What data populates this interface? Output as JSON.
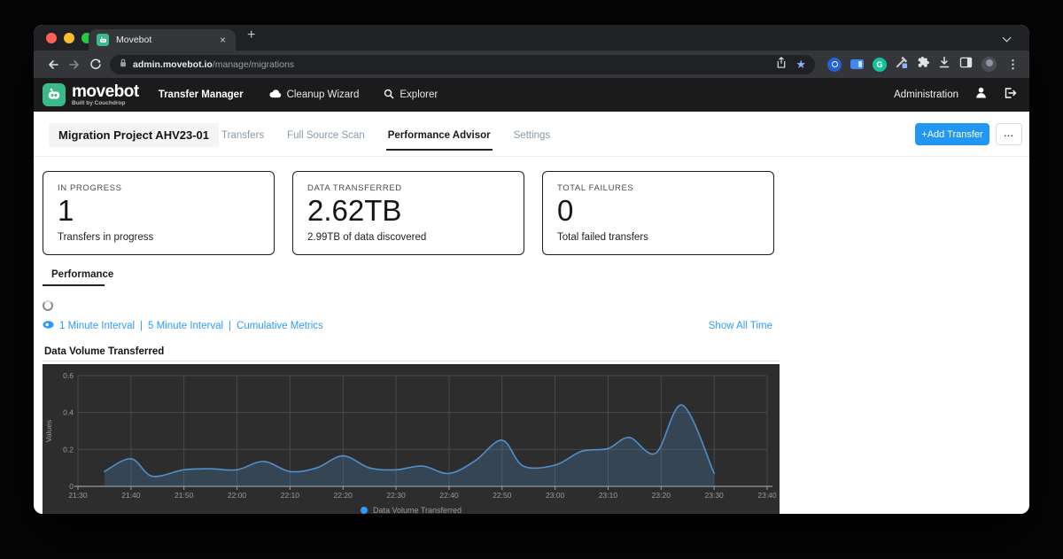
{
  "browser": {
    "tab_title": "Movebot",
    "url_domain": "admin.movebot.io",
    "url_path": "/manage/migrations",
    "glyphs": {
      "close_tab": "×",
      "new_tab": "+",
      "bookmark_star": "★",
      "menu_dots": "⋮",
      "grammarly_g": "G"
    },
    "toolbar_icons": [
      "back-arrow",
      "forward-arrow",
      "reload",
      "lock",
      "share",
      "bookmark-star",
      "onepassword",
      "card-extension",
      "grammarly",
      "color-picker",
      "extensions-puzzle",
      "downloads",
      "sidebar-panel",
      "profile-avatar",
      "menu-dots",
      "tab-search-chevron"
    ]
  },
  "navbar": {
    "brand": "movebot",
    "brand_tagline": "Built by Couchdrop",
    "items": [
      {
        "label": "Transfer Manager",
        "active": true
      },
      {
        "label": "Cleanup Wizard",
        "icon": "cleanup-cloud-icon"
      },
      {
        "label": "Explorer",
        "icon": "search-icon"
      }
    ],
    "administration": "Administration"
  },
  "page": {
    "project_title": "Migration Project AHV23-01",
    "tabs": [
      {
        "label": "Transfers",
        "active": false
      },
      {
        "label": "Full Source Scan",
        "active": false
      },
      {
        "label": "Performance Advisor",
        "active": true
      },
      {
        "label": "Settings",
        "active": false
      }
    ],
    "add_transfer": "+Add Transfer",
    "more": "...",
    "stats": [
      {
        "label": "IN PROGRESS",
        "value": "1",
        "caption": "Transfers in progress"
      },
      {
        "label": "DATA TRANSFERRED",
        "value": "2.62TB",
        "caption": "2.99TB of data discovered"
      },
      {
        "label": "TOTAL FAILURES",
        "value": "0",
        "caption": "Total failed transfers"
      }
    ],
    "performance_tab": "Performance",
    "interval_links": [
      "1 Minute Interval",
      "5 Minute Interval",
      "Cumulative Metrics"
    ],
    "interval_separator": "|",
    "show_all_time": "Show All Time"
  },
  "chart_data": {
    "type": "area",
    "title": "Data Volume Transferred",
    "ylabel": "Values",
    "ylim": [
      0,
      0.6
    ],
    "yticks": [
      0,
      0.2,
      0.4,
      0.6
    ],
    "xtick_labels": [
      "21:30",
      "21:40",
      "21:50",
      "22:00",
      "22:10",
      "22:20",
      "22:30",
      "22:40",
      "22:50",
      "23:00",
      "23:10",
      "23:20",
      "23:30",
      "23:40"
    ],
    "x_range_minutes": [
      0,
      130
    ],
    "grid": true,
    "legend_position": "bottom",
    "series": [
      {
        "name": "Data Volume Transferred",
        "x_minutes": [
          5,
          10,
          14,
          20,
          25,
          30,
          35,
          40,
          45,
          50,
          55,
          60,
          65,
          70,
          75,
          80,
          84,
          90,
          95,
          100,
          104,
          109,
          114,
          120
        ],
        "values": [
          0.08,
          0.15,
          0.055,
          0.09,
          0.095,
          0.09,
          0.135,
          0.08,
          0.1,
          0.165,
          0.1,
          0.09,
          0.11,
          0.07,
          0.14,
          0.25,
          0.11,
          0.115,
          0.19,
          0.205,
          0.265,
          0.18,
          0.44,
          0.07
        ]
      }
    ],
    "colors": {
      "line": "#4f90cc",
      "fill_rgba": "rgba(79,144,204,0.25)",
      "background": "#2d2d2d",
      "grid": "#494949",
      "axis": "#9a9a9a",
      "tick_text": "#9a9a9a"
    }
  },
  "colors": {
    "accent_blue": "#2e9cf6",
    "button_blue": "#2196f3",
    "brand_green": "#3cb98a",
    "tab_inactive": "#8a99a8"
  }
}
